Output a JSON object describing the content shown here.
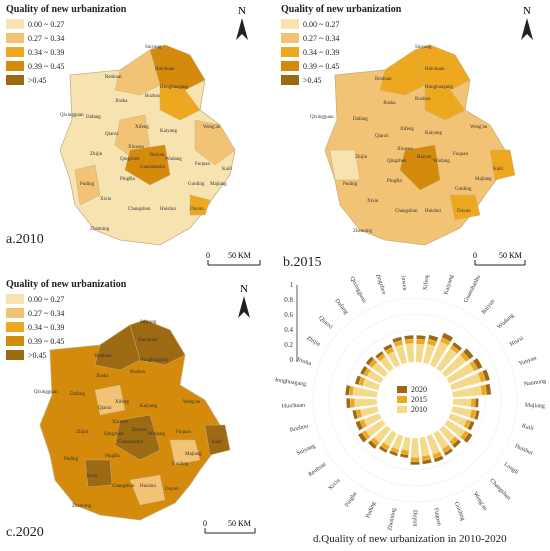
{
  "legend_title": "Quality of new urbanization",
  "legend": [
    {
      "label": "0.00 ~ 0.27",
      "color": "#f7e3b0"
    },
    {
      "label": "0.27 ~ 0.34",
      "color": "#f2c374"
    },
    {
      "label": "0.34 ~ 0.39",
      "color": "#eea820"
    },
    {
      "label": "0.39 ~ 0.45",
      "color": "#d48a0a"
    },
    {
      "label": ">0.45",
      "color": "#9c6a12"
    }
  ],
  "north_label": "N",
  "scale": {
    "zero": "0",
    "distance": "50 KM"
  },
  "panels": {
    "a": "a.2010",
    "b": "b.2015",
    "c": "c.2020"
  },
  "map_places": [
    "Suiyang",
    "Huichuan",
    "Renhuai",
    "Honghuagang",
    "Bozhou",
    "Jinsha",
    "Qixingguan",
    "Dafang",
    "Xifeng",
    "Kaiyang",
    "Weng'an",
    "Qianxi",
    "Xiuwen",
    "Baiyun",
    "Wudang",
    "Zhijin",
    "Qingzhen",
    "Guanshanhu",
    "Yunyan",
    "Nanming",
    "Huaxi",
    "Longli",
    "Fuquan",
    "Kaili",
    "Puding",
    "PingBa",
    "Guiding",
    "Majiang",
    "Xixiu",
    "Changshun",
    "Huishui",
    "Duyun",
    "Zhenning"
  ],
  "map_title_d": "d.Quality of new urbanization in 2010-2020",
  "chart_data": {
    "type": "bar",
    "subtype": "radial",
    "title": "d.Quality of new urbanization in 2010-2020",
    "radial_axis": {
      "ticks": [
        "0",
        "0.2",
        "0.4",
        "0.6",
        "0.8",
        "1"
      ],
      "range": [
        0,
        1
      ]
    },
    "categories": [
      "Xifeng",
      "Kaiyang",
      "Guanshanhu",
      "Baiyun",
      "Wudang",
      "Huaxi",
      "Yunyan",
      "Nanming",
      "Majiang",
      "Kaili",
      "Huishui",
      "Longli",
      "Changshun",
      "Weng'an",
      "Guiding",
      "Fuquan",
      "Duyun",
      "Zhenning",
      "Puding",
      "Pingba",
      "Xixiu",
      "Renhuai",
      "Suiyang",
      "Bozhou",
      "Huichuan",
      "Honghuagang",
      "Jinsha",
      "Zhijin",
      "Qianxi",
      "Dafang",
      "Qixingguan",
      "Qingzhen",
      "Xiuwen"
    ],
    "series": [
      {
        "name": "2020",
        "color": "#9c6a12",
        "values": [
          0.42,
          0.45,
          0.55,
          0.5,
          0.55,
          0.58,
          0.62,
          0.6,
          0.4,
          0.43,
          0.4,
          0.46,
          0.38,
          0.4,
          0.43,
          0.42,
          0.42,
          0.32,
          0.33,
          0.35,
          0.4,
          0.45,
          0.4,
          0.4,
          0.48,
          0.5,
          0.38,
          0.36,
          0.37,
          0.33,
          0.36,
          0.42,
          0.42
        ]
      },
      {
        "name": "2015",
        "color": "#eea820",
        "values": [
          0.36,
          0.38,
          0.47,
          0.44,
          0.47,
          0.5,
          0.55,
          0.53,
          0.35,
          0.38,
          0.34,
          0.39,
          0.32,
          0.35,
          0.37,
          0.36,
          0.37,
          0.27,
          0.28,
          0.3,
          0.34,
          0.38,
          0.33,
          0.34,
          0.42,
          0.44,
          0.32,
          0.3,
          0.31,
          0.28,
          0.3,
          0.36,
          0.36
        ]
      },
      {
        "name": "2010",
        "color": "#f5d98a",
        "values": [
          0.28,
          0.3,
          0.4,
          0.38,
          0.4,
          0.43,
          0.47,
          0.45,
          0.28,
          0.3,
          0.27,
          0.32,
          0.25,
          0.28,
          0.3,
          0.29,
          0.3,
          0.2,
          0.22,
          0.23,
          0.27,
          0.31,
          0.26,
          0.27,
          0.35,
          0.38,
          0.25,
          0.24,
          0.24,
          0.22,
          0.23,
          0.29,
          0.29
        ]
      }
    ],
    "legend_position": "center"
  }
}
